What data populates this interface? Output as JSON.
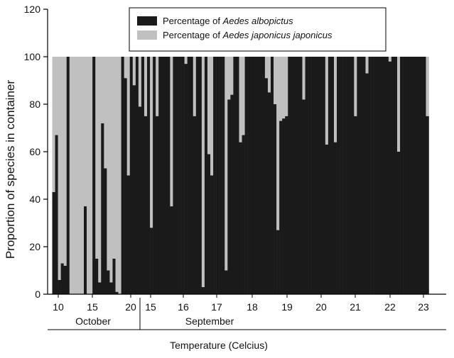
{
  "chart_data": {
    "type": "bar",
    "stacked": true,
    "ylabel": "Proportion of species in container",
    "xlabel": "Temperature (Celcius)",
    "ylim": [
      0,
      120
    ],
    "yticks": [
      0,
      20,
      40,
      60,
      80,
      100,
      120
    ],
    "grid": false,
    "legend_position": "top-right",
    "legend": [
      {
        "prefix": "Percentage of ",
        "italic": "Aedes albopictus",
        "color": "#1a1a1a"
      },
      {
        "prefix": "Percentage of ",
        "italic": "Aedes japonicus japonicus",
        "color": "#c0c0c0"
      }
    ],
    "xticks": [
      "10",
      "15",
      "20",
      "15",
      "16",
      "17",
      "18",
      "19",
      "20",
      "21",
      "22",
      "23"
    ],
    "month_labels": [
      "October",
      "September"
    ],
    "series": [
      {
        "name": "Percentage of Aedes albopictus",
        "color": "#1a1a1a",
        "values": [
          43,
          67,
          6,
          13,
          12,
          100,
          0,
          0,
          0,
          0,
          0,
          37,
          0,
          0,
          100,
          15,
          5,
          72,
          53,
          10,
          5,
          15,
          1,
          0,
          100,
          91,
          50,
          100,
          88,
          100,
          79,
          100,
          75,
          100,
          28,
          100,
          75,
          100,
          100,
          100,
          100,
          37,
          100,
          100,
          100,
          100,
          97,
          100,
          100,
          75,
          100,
          100,
          3,
          100,
          59,
          50,
          100,
          100,
          100,
          100,
          10,
          82,
          84,
          100,
          100,
          64,
          67,
          100,
          100,
          100,
          100,
          100,
          100,
          100,
          91,
          85,
          100,
          80,
          27,
          73,
          74,
          75,
          100,
          100,
          100,
          100,
          100,
          82,
          100,
          100,
          100,
          100,
          100,
          100,
          100,
          63,
          100,
          100,
          64,
          100,
          100,
          100,
          100,
          100,
          100,
          75,
          100,
          100,
          100,
          93,
          100,
          100,
          100,
          100,
          100,
          100,
          100,
          98,
          100,
          100,
          60,
          100,
          100,
          100,
          100,
          100,
          100,
          100,
          100,
          100,
          75
        ]
      },
      {
        "name": "Percentage of Aedes japonicus japonicus",
        "color": "#c0c0c0",
        "values": [
          57,
          33,
          94,
          87,
          88,
          0,
          100,
          100,
          100,
          100,
          100,
          63,
          100,
          100,
          0,
          85,
          95,
          28,
          47,
          90,
          95,
          85,
          99,
          100,
          0,
          9,
          50,
          0,
          12,
          0,
          21,
          0,
          25,
          0,
          72,
          0,
          25,
          0,
          0,
          0,
          0,
          63,
          0,
          0,
          0,
          0,
          3,
          0,
          0,
          25,
          0,
          0,
          97,
          0,
          41,
          50,
          0,
          0,
          0,
          0,
          90,
          18,
          16,
          0,
          0,
          36,
          33,
          0,
          0,
          0,
          0,
          0,
          0,
          0,
          9,
          15,
          0,
          20,
          73,
          27,
          26,
          25,
          0,
          0,
          0,
          0,
          0,
          18,
          0,
          0,
          0,
          0,
          0,
          0,
          0,
          37,
          0,
          0,
          36,
          0,
          0,
          0,
          0,
          0,
          0,
          25,
          0,
          0,
          0,
          7,
          0,
          0,
          0,
          0,
          0,
          0,
          0,
          2,
          0,
          0,
          40,
          0,
          0,
          0,
          0,
          0,
          0,
          0,
          0,
          0,
          25
        ]
      }
    ]
  }
}
